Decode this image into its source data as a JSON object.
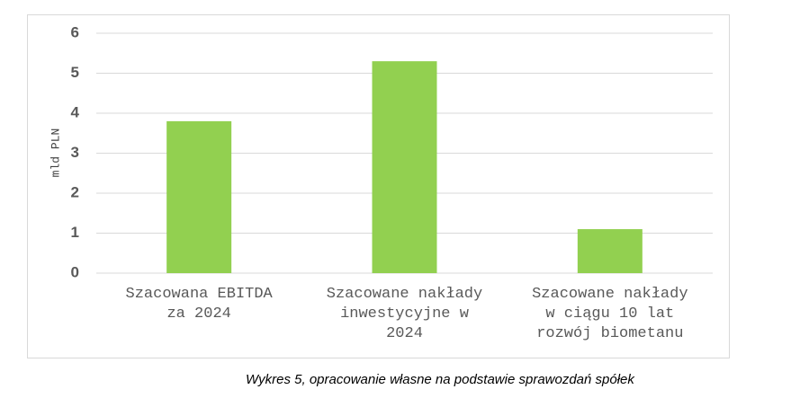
{
  "chart_data": {
    "type": "bar",
    "y_label": "mld PLN",
    "categories": [
      "Szacowana EBITDA za 2024",
      "Szacowane nakłady inwestycyjne w 2024",
      "Szacowane nakłady w ciągu 10 lat rozwój biometanu"
    ],
    "values": [
      3.8,
      5.3,
      1.1
    ],
    "color": "#92d050",
    "ylim": [
      0,
      6
    ],
    "yticks": [
      0,
      1,
      2,
      3,
      4,
      5,
      6
    ],
    "grid": true
  },
  "caption": "Wykres 5, opracowanie własne na podstawie sprawozdań spółek"
}
